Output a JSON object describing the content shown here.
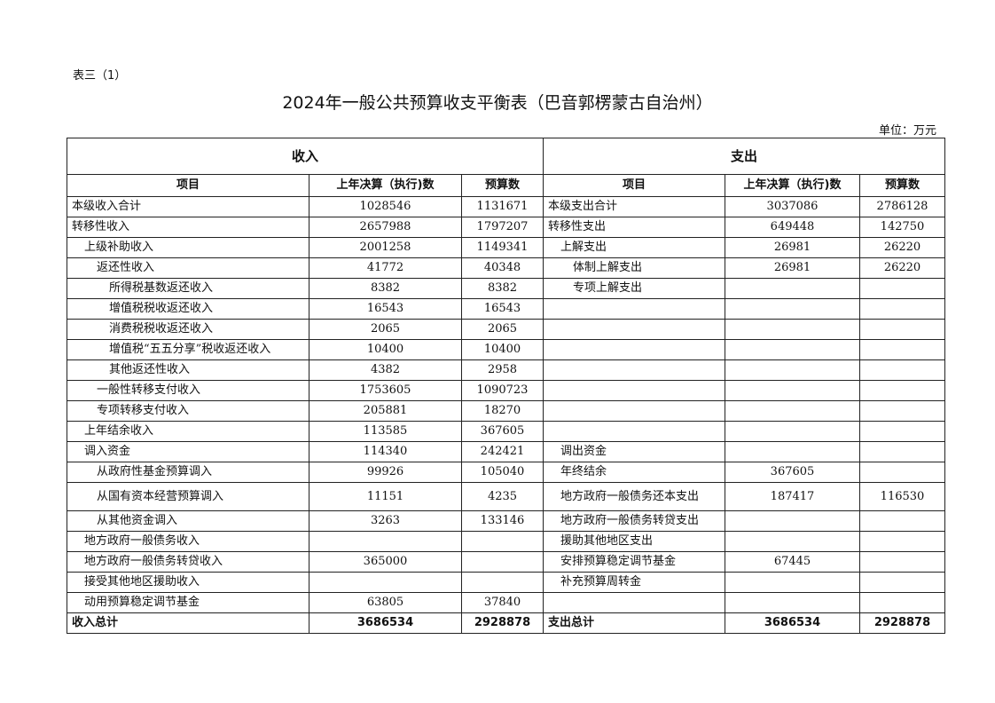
{
  "table_label": "表三（1）",
  "title": "2024年一般公共预算收支平衡表（巴音郭楞蒙古自治州）",
  "unit": "单位：万元",
  "sections": {
    "income": "收入",
    "expenditure": "支出"
  },
  "columns": {
    "item": "项目",
    "prev": "上年决算（执行)数",
    "budget": "预算数"
  },
  "rows": [
    {
      "income": {
        "item": "本级收入合计",
        "level": 0,
        "prev": "1028546",
        "budget": "1131671"
      },
      "expenditure": {
        "item": "本级支出合计",
        "level": 0,
        "prev": "3037086",
        "budget": "2786128"
      }
    },
    {
      "income": {
        "item": "转移性收入",
        "level": 0,
        "prev": "2657988",
        "budget": "1797207"
      },
      "expenditure": {
        "item": "转移性支出",
        "level": 0,
        "prev": "649448",
        "budget": "142750"
      }
    },
    {
      "income": {
        "item": "上级补助收入",
        "level": 1,
        "prev": "2001258",
        "budget": "1149341"
      },
      "expenditure": {
        "item": "上解支出",
        "level": 1,
        "prev": "26981",
        "budget": "26220"
      }
    },
    {
      "income": {
        "item": "返还性收入",
        "level": 2,
        "prev": "41772",
        "budget": "40348"
      },
      "expenditure": {
        "item": "体制上解支出",
        "level": 2,
        "prev": "26981",
        "budget": "26220"
      }
    },
    {
      "income": {
        "item": "所得税基数返还收入",
        "level": 3,
        "prev": "8382",
        "budget": "8382"
      },
      "expenditure": {
        "item": "专项上解支出",
        "level": 2,
        "prev": "",
        "budget": ""
      }
    },
    {
      "income": {
        "item": "增值税税收返还收入",
        "level": 3,
        "prev": "16543",
        "budget": "16543"
      },
      "expenditure": {
        "item": "",
        "level": 0,
        "prev": "",
        "budget": ""
      }
    },
    {
      "income": {
        "item": "消费税税收返还收入",
        "level": 3,
        "prev": "2065",
        "budget": "2065"
      },
      "expenditure": {
        "item": "",
        "level": 0,
        "prev": "",
        "budget": ""
      }
    },
    {
      "income": {
        "item": "增值税“五五分享”税收返还收入",
        "level": 3,
        "prev": "10400",
        "budget": "10400"
      },
      "expenditure": {
        "item": "",
        "level": 0,
        "prev": "",
        "budget": ""
      }
    },
    {
      "income": {
        "item": "其他返还性收入",
        "level": 3,
        "prev": "4382",
        "budget": "2958"
      },
      "expenditure": {
        "item": "",
        "level": 0,
        "prev": "",
        "budget": ""
      }
    },
    {
      "income": {
        "item": "一般性转移支付收入",
        "level": 2,
        "prev": "1753605",
        "budget": "1090723"
      },
      "expenditure": {
        "item": "",
        "level": 0,
        "prev": "",
        "budget": ""
      }
    },
    {
      "income": {
        "item": "专项转移支付收入",
        "level": 2,
        "prev": "205881",
        "budget": "18270"
      },
      "expenditure": {
        "item": "",
        "level": 0,
        "prev": "",
        "budget": ""
      }
    },
    {
      "income": {
        "item": "上年结余收入",
        "level": 1,
        "prev": "113585",
        "budget": "367605"
      },
      "expenditure": {
        "item": "",
        "level": 0,
        "prev": "",
        "budget": ""
      }
    },
    {
      "income": {
        "item": "调入资金",
        "level": 1,
        "prev": "114340",
        "budget": "242421"
      },
      "expenditure": {
        "item": "调出资金",
        "level": 1,
        "prev": "",
        "budget": ""
      }
    },
    {
      "income": {
        "item": "从政府性基金预算调入",
        "level": 2,
        "prev": "99926",
        "budget": "105040"
      },
      "expenditure": {
        "item": "年终结余",
        "level": 1,
        "prev": "367605",
        "budget": ""
      }
    },
    {
      "tall": true,
      "income": {
        "item": "从国有资本经营预算调入",
        "level": 2,
        "prev": "11151",
        "budget": "4235"
      },
      "expenditure": {
        "item": "地方政府一般债务还本支出",
        "level": 1,
        "prev": "187417",
        "budget": "116530"
      }
    },
    {
      "income": {
        "item": "从其他资金调入",
        "level": 2,
        "prev": "3263",
        "budget": "133146"
      },
      "expenditure": {
        "item": "地方政府一般债务转贷支出",
        "level": 1,
        "prev": "",
        "budget": ""
      }
    },
    {
      "income": {
        "item": "地方政府一般债务收入",
        "level": 1,
        "prev": "",
        "budget": ""
      },
      "expenditure": {
        "item": "援助其他地区支出",
        "level": 1,
        "prev": "",
        "budget": ""
      }
    },
    {
      "income": {
        "item": "地方政府一般债务转贷收入",
        "level": 1,
        "prev": "365000",
        "budget": ""
      },
      "expenditure": {
        "item": "安排预算稳定调节基金",
        "level": 1,
        "prev": "67445",
        "budget": ""
      }
    },
    {
      "income": {
        "item": "接受其他地区援助收入",
        "level": 1,
        "prev": "",
        "budget": ""
      },
      "expenditure": {
        "item": "补充预算周转金",
        "level": 1,
        "prev": "",
        "budget": ""
      }
    },
    {
      "income": {
        "item": "动用预算稳定调节基金",
        "level": 1,
        "prev": "63805",
        "budget": "37840"
      },
      "expenditure": {
        "item": "",
        "level": 0,
        "prev": "",
        "budget": ""
      }
    }
  ],
  "totals": {
    "income": {
      "item": "收入总计",
      "prev": "3686534",
      "budget": "2928878"
    },
    "expenditure": {
      "item": "支出总计",
      "prev": "3686534",
      "budget": "2928878"
    }
  }
}
